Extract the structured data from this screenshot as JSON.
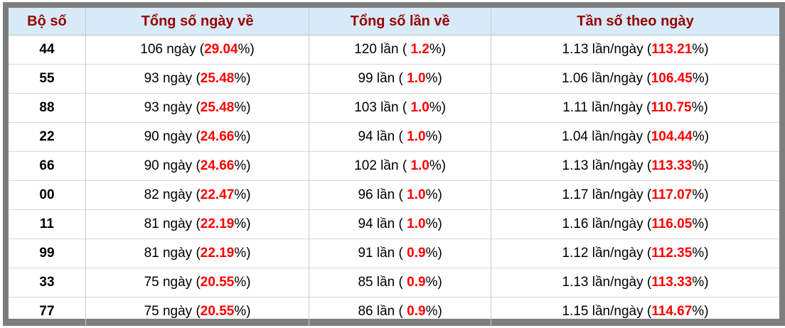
{
  "table": {
    "headers": [
      "Bộ số",
      "Tổng số ngày về",
      "Tổng số lần về",
      "Tần số theo ngày"
    ],
    "rows": [
      {
        "so": "44",
        "ngay": "106 ngày",
        "ngay_pct": "29.04",
        "lan": "120 lần",
        "lan_pct": "1.2",
        "tanso": "1.13 lần/ngày",
        "tanso_pct": "113.21"
      },
      {
        "so": "55",
        "ngay": "93 ngày",
        "ngay_pct": "25.48",
        "lan": "99 lần",
        "lan_pct": "1.0",
        "tanso": "1.06 lần/ngày",
        "tanso_pct": "106.45"
      },
      {
        "so": "88",
        "ngay": "93 ngày",
        "ngay_pct": "25.48",
        "lan": "103 lần",
        "lan_pct": "1.0",
        "tanso": "1.11 lần/ngày",
        "tanso_pct": "110.75"
      },
      {
        "so": "22",
        "ngay": "90 ngày",
        "ngay_pct": "24.66",
        "lan": "94 lần",
        "lan_pct": "1.0",
        "tanso": "1.04 lần/ngày",
        "tanso_pct": "104.44"
      },
      {
        "so": "66",
        "ngay": "90 ngày",
        "ngay_pct": "24.66",
        "lan": "102 lần",
        "lan_pct": "1.0",
        "tanso": "1.13 lần/ngày",
        "tanso_pct": "113.33"
      },
      {
        "so": "00",
        "ngay": "82 ngày",
        "ngay_pct": "22.47",
        "lan": "96 lần",
        "lan_pct": "1.0",
        "tanso": "1.17 lần/ngày",
        "tanso_pct": "117.07"
      },
      {
        "so": "11",
        "ngay": "81 ngày",
        "ngay_pct": "22.19",
        "lan": "94 lần",
        "lan_pct": "1.0",
        "tanso": "1.16 lần/ngày",
        "tanso_pct": "116.05"
      },
      {
        "so": "99",
        "ngay": "81 ngày",
        "ngay_pct": "22.19",
        "lan": "91 lần",
        "lan_pct": "0.9",
        "tanso": "1.12 lần/ngày",
        "tanso_pct": "112.35"
      },
      {
        "so": "33",
        "ngay": "75 ngày",
        "ngay_pct": "20.55",
        "lan": "85 lần",
        "lan_pct": "0.9",
        "tanso": "1.13 lần/ngày",
        "tanso_pct": "113.33"
      },
      {
        "so": "77",
        "ngay": "75 ngày",
        "ngay_pct": "20.55",
        "lan": "86 lần",
        "lan_pct": "0.9",
        "tanso": "1.15 lần/ngày",
        "tanso_pct": "114.67"
      }
    ],
    "colors": {
      "header_bg": "#d7eaf8",
      "header_text": "#990000",
      "percent_highlight": "#ff0000",
      "frame_border": "#7e7e7e"
    }
  }
}
